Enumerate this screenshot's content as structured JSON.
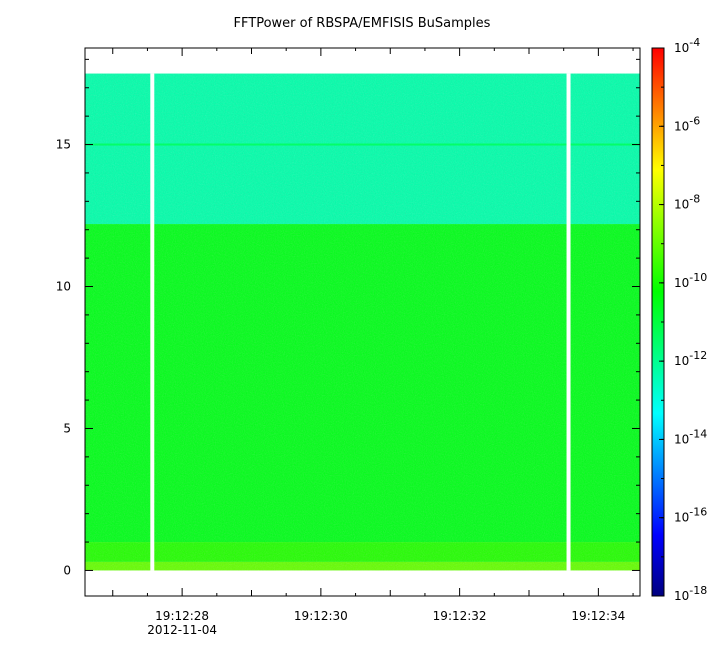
{
  "chart_data": {
    "type": "heatmap",
    "title": "FFTPower of RBSPA/EMFISIS  BuSamples",
    "xlabel": "",
    "ylabel": "",
    "x_tick_labels": [
      "19:12:28",
      "19:12:30",
      "19:12:32",
      "19:12:34"
    ],
    "x_date_label": "2012-11-04",
    "xlim_seconds": [
      26.6,
      34.6
    ],
    "y_ticks": [
      0,
      5,
      10,
      15
    ],
    "ylim": [
      -0.9,
      18.4
    ],
    "data_band": {
      "y_range": [
        0,
        17.5
      ],
      "levels": [
        {
          "y_range": [
            0.0,
            0.3
          ],
          "log10_power": -9.0
        },
        {
          "y_range": [
            0.3,
            1.0
          ],
          "log10_power": -9.8
        },
        {
          "y_range": [
            1.0,
            12.2
          ],
          "log10_power": -10.5
        },
        {
          "y_range": [
            12.2,
            17.5
          ],
          "log10_power": -12.3
        }
      ],
      "line_at": 15.0,
      "gaps_seconds": [
        27.57,
        33.57
      ]
    },
    "colorbar": {
      "scale": "log",
      "range_exponents": [
        -18,
        -4
      ],
      "tick_base": "10",
      "tick_exponents": [
        "-4",
        "-6",
        "-8",
        "-10",
        "-12",
        "-14",
        "-16",
        "-18"
      ],
      "colors": [
        "#00007f",
        "#0000ff",
        "#007fff",
        "#00ffff",
        "#00ff7f",
        "#00ff00",
        "#7fff00",
        "#ffff00",
        "#ff7f00",
        "#ff0000"
      ]
    }
  }
}
